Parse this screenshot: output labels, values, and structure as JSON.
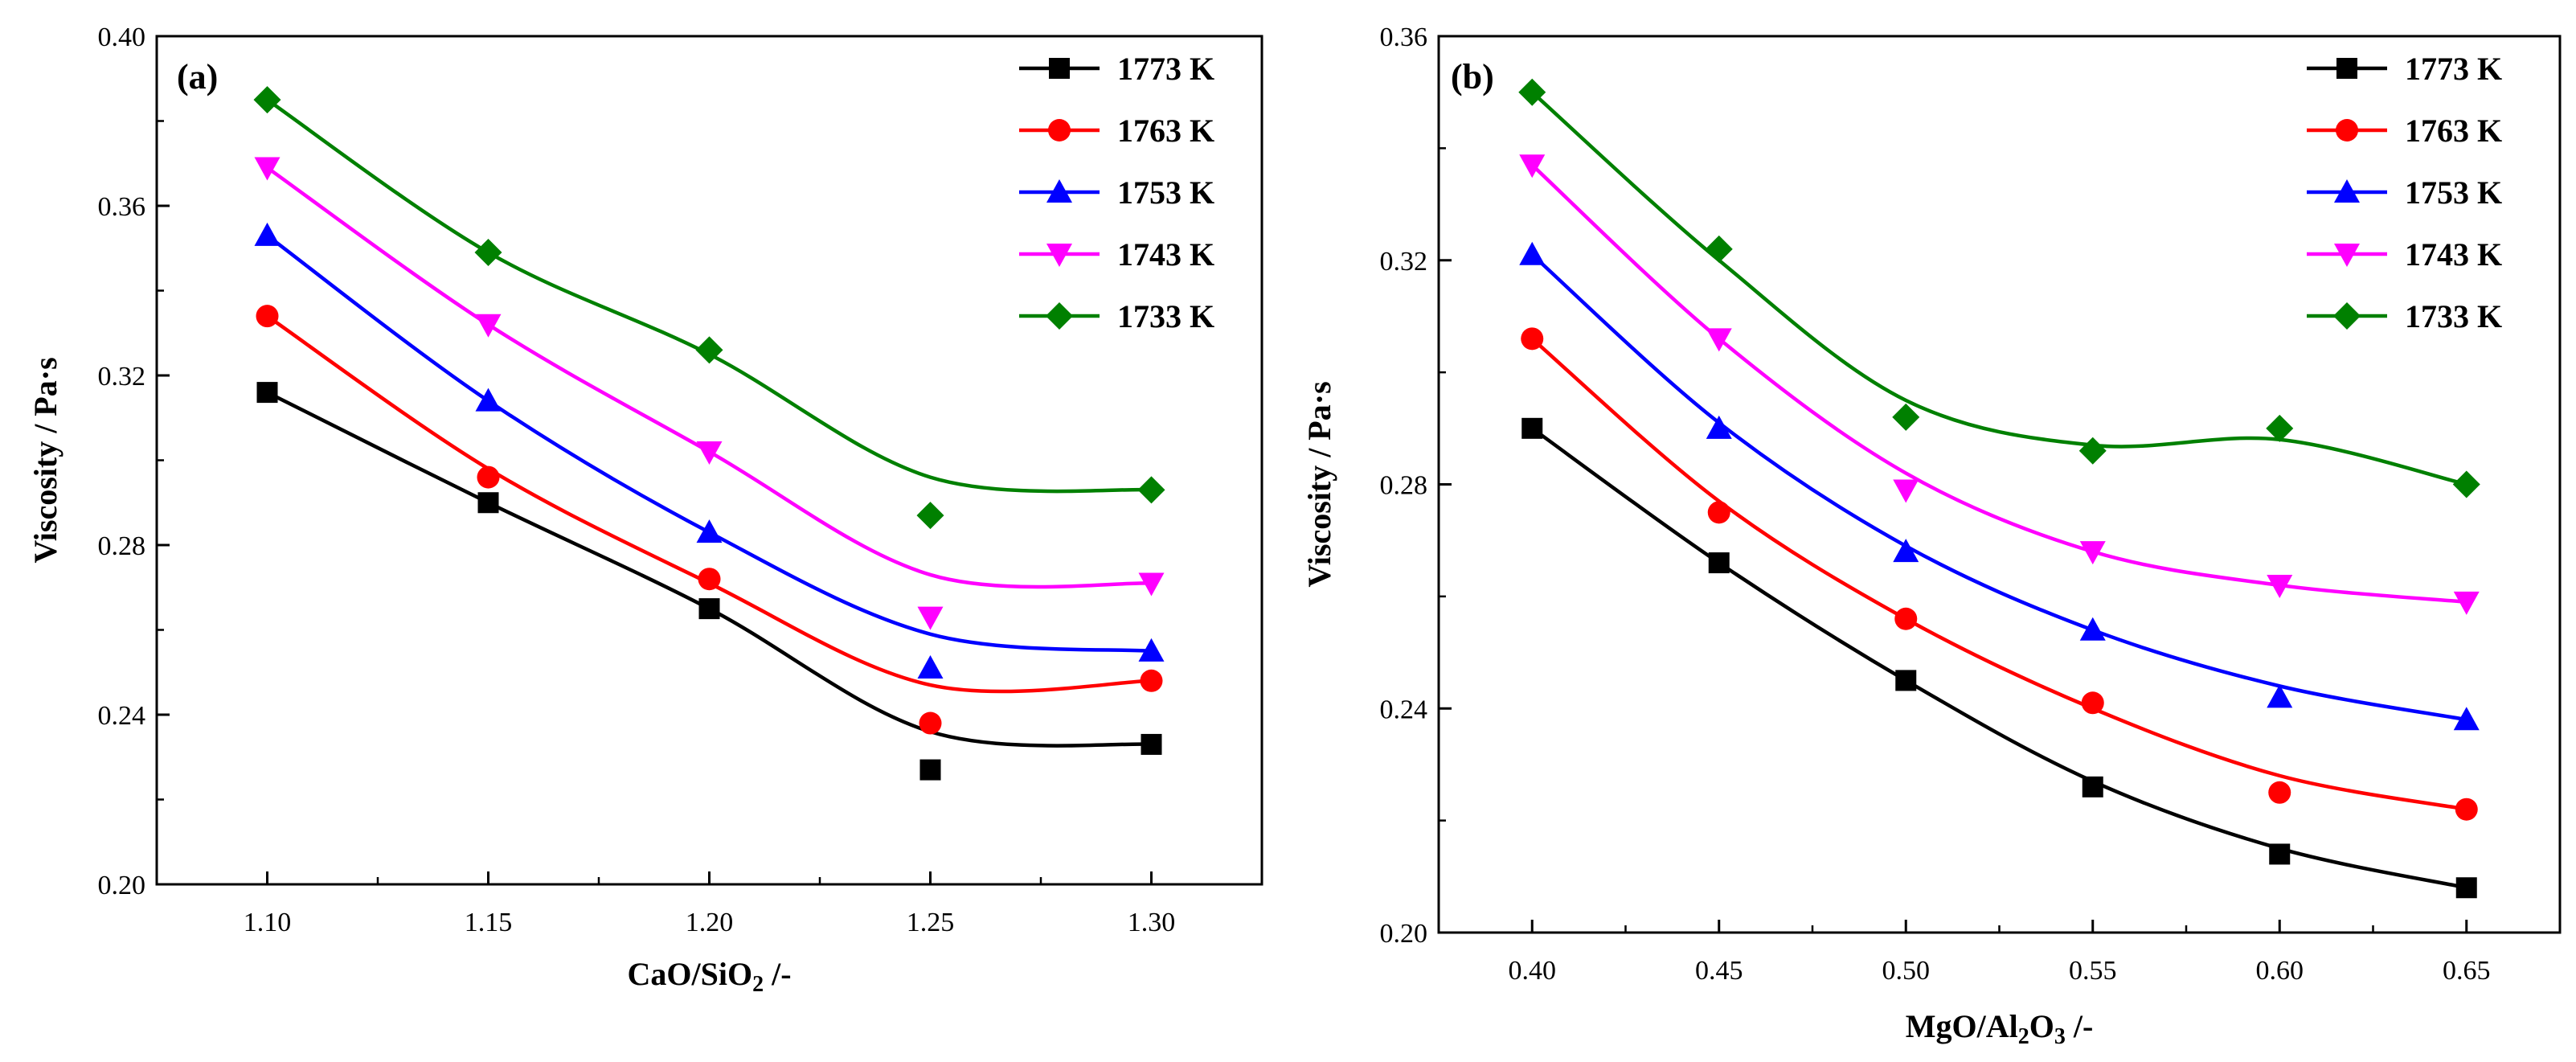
{
  "chart_data": [
    {
      "type": "line",
      "panel_label": "(a)",
      "xlabel": "CaO/SiO",
      "xlabel_sub": "2",
      "xlabel_suffix": " /-",
      "ylabel": "Viscosity / Pa·s",
      "xlim": [
        1.075,
        1.325
      ],
      "ylim": [
        0.2,
        0.4
      ],
      "x": [
        1.1,
        1.15,
        1.2,
        1.25,
        1.3
      ],
      "x_tick_labels": [
        "1.10",
        "1.15",
        "1.20",
        "1.25",
        "1.30"
      ],
      "y_ticks": [
        0.2,
        0.24,
        0.28,
        0.32,
        0.36,
        0.4
      ],
      "y_tick_labels": [
        "0.20",
        "0.24",
        "0.28",
        "0.32",
        "0.36",
        "0.40"
      ],
      "legend_position": "top-right",
      "series": [
        {
          "name": "1773 K",
          "color": "#000000",
          "marker": "square",
          "values": [
            0.316,
            0.29,
            0.265,
            0.227,
            0.233
          ],
          "fit": [
            0.316,
            0.29,
            0.265,
            0.236,
            0.233
          ]
        },
        {
          "name": "1763 K",
          "color": "#ff0000",
          "marker": "circle",
          "values": [
            0.334,
            0.296,
            0.272,
            0.238,
            0.248
          ],
          "fit": [
            0.334,
            0.298,
            0.271,
            0.247,
            0.248
          ]
        },
        {
          "name": "1753 K",
          "color": "#0000ff",
          "marker": "triangle-up",
          "values": [
            0.353,
            0.314,
            0.283,
            0.251,
            0.255
          ],
          "fit": [
            0.353,
            0.314,
            0.283,
            0.259,
            0.255
          ]
        },
        {
          "name": "1743 K",
          "color": "#ff00ff",
          "marker": "triangle-down",
          "values": [
            0.369,
            0.332,
            0.302,
            0.263,
            0.271
          ],
          "fit": [
            0.369,
            0.332,
            0.302,
            0.273,
            0.271
          ]
        },
        {
          "name": "1733 K",
          "color": "#008000",
          "marker": "diamond",
          "values": [
            0.385,
            0.349,
            0.326,
            0.287,
            0.293
          ],
          "fit": [
            0.385,
            0.349,
            0.325,
            0.296,
            0.293
          ]
        }
      ]
    },
    {
      "type": "line",
      "panel_label": "(b)",
      "xlabel": "MgO/Al",
      "xlabel_sub": "2",
      "xlabel_mid": "O",
      "xlabel_sub2": "3",
      "xlabel_suffix": " /-",
      "ylabel": "Viscosity / Pa·s",
      "xlim": [
        0.375,
        0.675
      ],
      "ylim": [
        0.2,
        0.36
      ],
      "x": [
        0.4,
        0.45,
        0.5,
        0.55,
        0.6,
        0.65
      ],
      "x_tick_labels": [
        "0.40",
        "0.45",
        "0.50",
        "0.55",
        "0.60",
        "0.65"
      ],
      "y_ticks": [
        0.2,
        0.24,
        0.28,
        0.32,
        0.36
      ],
      "y_tick_labels": [
        "0.20",
        "0.24",
        "0.28",
        "0.32",
        "0.36"
      ],
      "legend_position": "top-right",
      "series": [
        {
          "name": "1773 K",
          "color": "#000000",
          "marker": "square",
          "values": [
            0.29,
            0.266,
            0.245,
            0.226,
            0.214,
            0.208
          ],
          "fit": [
            0.29,
            0.266,
            0.245,
            0.227,
            0.215,
            0.208
          ]
        },
        {
          "name": "1763 K",
          "color": "#ff0000",
          "marker": "circle",
          "values": [
            0.306,
            0.275,
            0.256,
            0.241,
            0.225,
            0.222
          ],
          "fit": [
            0.306,
            0.277,
            0.256,
            0.24,
            0.228,
            0.222
          ]
        },
        {
          "name": "1753 K",
          "color": "#0000ff",
          "marker": "triangle-up",
          "values": [
            0.321,
            0.29,
            0.268,
            0.254,
            0.242,
            0.238
          ],
          "fit": [
            0.321,
            0.291,
            0.269,
            0.254,
            0.244,
            0.238
          ]
        },
        {
          "name": "1743 K",
          "color": "#ff00ff",
          "marker": "triangle-down",
          "values": [
            0.337,
            0.306,
            0.279,
            0.268,
            0.262,
            0.259
          ],
          "fit": [
            0.337,
            0.306,
            0.282,
            0.268,
            0.262,
            0.259
          ]
        },
        {
          "name": "1733 K",
          "color": "#008000",
          "marker": "diamond",
          "values": [
            0.35,
            0.322,
            0.292,
            0.286,
            0.29,
            0.28
          ],
          "fit": [
            0.35,
            0.32,
            0.295,
            0.287,
            0.288,
            0.28
          ]
        }
      ]
    }
  ]
}
